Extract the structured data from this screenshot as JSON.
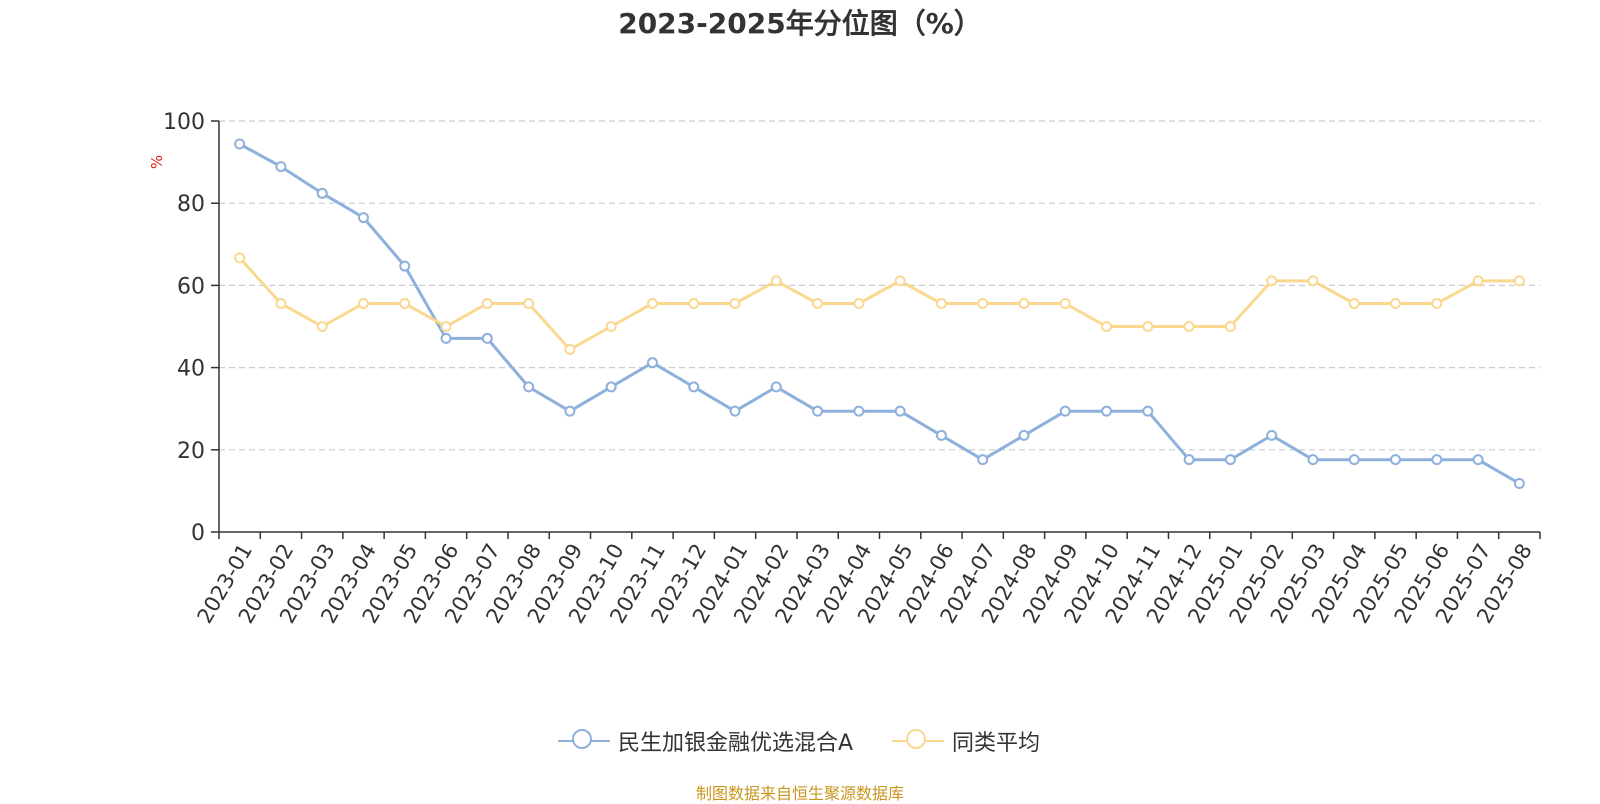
{
  "chart_title": "2023-2025年分位图（%）",
  "source_note": "制图数据来自恒生聚源数据库",
  "chart_data": {
    "type": "line",
    "title": "2023-2025年分位图（%）",
    "ylabel": "%",
    "xlabel": "",
    "ylim": [
      0,
      100
    ],
    "yticks": [
      0,
      20,
      40,
      60,
      80,
      100
    ],
    "grid": true,
    "legend_position": "bottom-center",
    "categories": [
      "2023-01",
      "2023-02",
      "2023-03",
      "2023-04",
      "2023-05",
      "2023-06",
      "2023-07",
      "2023-08",
      "2023-09",
      "2023-10",
      "2023-11",
      "2023-12",
      "2024-01",
      "2024-02",
      "2024-03",
      "2024-04",
      "2024-05",
      "2024-06",
      "2024-07",
      "2024-08",
      "2024-09",
      "2024-10",
      "2024-11",
      "2024-12",
      "2025-01",
      "2025-02",
      "2025-03",
      "2025-04",
      "2025-05",
      "2025-06",
      "2025-07",
      "2025-08"
    ],
    "series": [
      {
        "name": "民生加银金融优选混合A",
        "color": "#8eb0dc",
        "values": [
          94.4,
          88.9,
          82.4,
          76.5,
          64.7,
          47.1,
          47.1,
          35.3,
          29.4,
          35.3,
          41.2,
          35.3,
          29.4,
          35.3,
          29.4,
          29.4,
          29.4,
          23.5,
          17.6,
          23.5,
          29.4,
          29.4,
          29.4,
          17.6,
          17.6,
          23.5,
          17.6,
          17.6,
          17.6,
          17.6,
          17.6,
          11.8
        ]
      },
      {
        "name": "同类平均",
        "color": "#fad890",
        "values": [
          66.7,
          55.6,
          50.0,
          55.6,
          55.6,
          50.0,
          55.6,
          55.6,
          44.4,
          50.0,
          55.6,
          55.6,
          55.6,
          61.1,
          55.6,
          55.6,
          61.1,
          55.6,
          55.6,
          55.6,
          55.6,
          50.0,
          50.0,
          50.0,
          50.0,
          61.1,
          61.1,
          55.6,
          55.6,
          55.6,
          61.1,
          61.1
        ]
      }
    ]
  }
}
